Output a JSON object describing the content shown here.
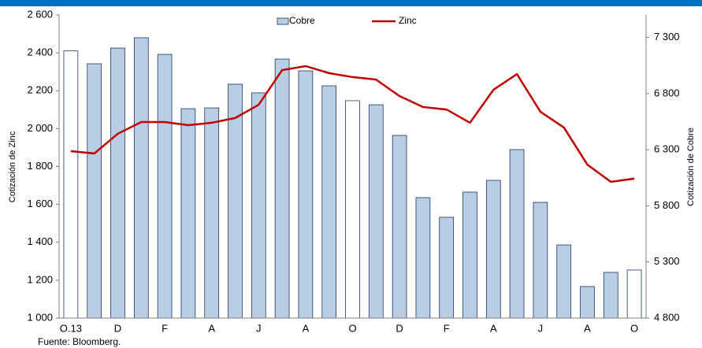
{
  "chart_data": {
    "type": "bar-line",
    "y_label": "Cotización de Zinc",
    "y2_label": "Cotización de Cobre",
    "source": "Fuente: Bloomberg.",
    "categories": [
      "O.13",
      null,
      "D",
      null,
      "F",
      null,
      "A",
      null,
      "J",
      null,
      "A",
      null,
      "O",
      null,
      "D",
      null,
      "F",
      null,
      "A",
      null,
      "J",
      null,
      "A",
      null,
      "O"
    ],
    "series": [
      {
        "name": "Cobre",
        "type": "bar",
        "axis": "y2",
        "color": "#b9cde5",
        "edge": "#1f3864",
        "colors": [
          "#ffffff",
          "#b9cde5",
          "#b9cde5",
          "#b9cde5",
          "#b9cde5",
          "#b9cde5",
          "#b9cde5",
          "#b9cde5",
          "#b9cde5",
          "#b9cde5",
          "#b9cde5",
          "#b9cde5",
          "#ffffff",
          "#b9cde5",
          "#b9cde5",
          "#b9cde5",
          "#b9cde5",
          "#b9cde5",
          "#b9cde5",
          "#b9cde5",
          "#b9cde5",
          "#b9cde5",
          "#b9cde5",
          "#b9cde5",
          "#ffffff"
        ],
        "values": [
          7180,
          7065,
          7205,
          7297,
          7149,
          6665,
          6672,
          6883,
          6806,
          7107,
          7002,
          6869,
          6736,
          6700,
          6427,
          5873,
          5698,
          5922,
          6027,
          6301,
          5831,
          5452,
          5081,
          5207,
          5228
        ]
      },
      {
        "name": "Zinc",
        "type": "line",
        "color": "#c00000",
        "values": [
          1881,
          1869,
          1973,
          2035,
          2035,
          2018,
          2031,
          2056,
          2126,
          2309,
          2330,
          2293,
          2272,
          2259,
          2172,
          2114,
          2101,
          2031,
          2205,
          2288,
          2089,
          2006,
          1810,
          1719,
          1736
        ]
      }
    ],
    "ylim": [
      1000,
      2600
    ],
    "yticks": [
      {
        "value": 1000,
        "label": "1 000"
      },
      {
        "value": 1200,
        "label": "1 200"
      },
      {
        "value": 1400,
        "label": "1 400"
      },
      {
        "value": 1600,
        "label": "1 600"
      },
      {
        "value": 1800,
        "label": "1 800"
      },
      {
        "value": 2000,
        "label": "2 000"
      },
      {
        "value": 2200,
        "label": "2 200"
      },
      {
        "value": 2400,
        "label": "2 400"
      },
      {
        "value": 2600,
        "label": "2 600"
      }
    ],
    "y2lim": [
      4800,
      7500
    ],
    "y2ticks": [
      {
        "value": 4800,
        "label": "4 800"
      },
      {
        "value": 5300,
        "label": "5 300"
      },
      {
        "value": 5800,
        "label": "5 800"
      },
      {
        "value": 6300,
        "label": "6 300"
      },
      {
        "value": 6800,
        "label": "6 800"
      },
      {
        "value": 7300,
        "label": "7 300"
      }
    ],
    "grid": false
  }
}
